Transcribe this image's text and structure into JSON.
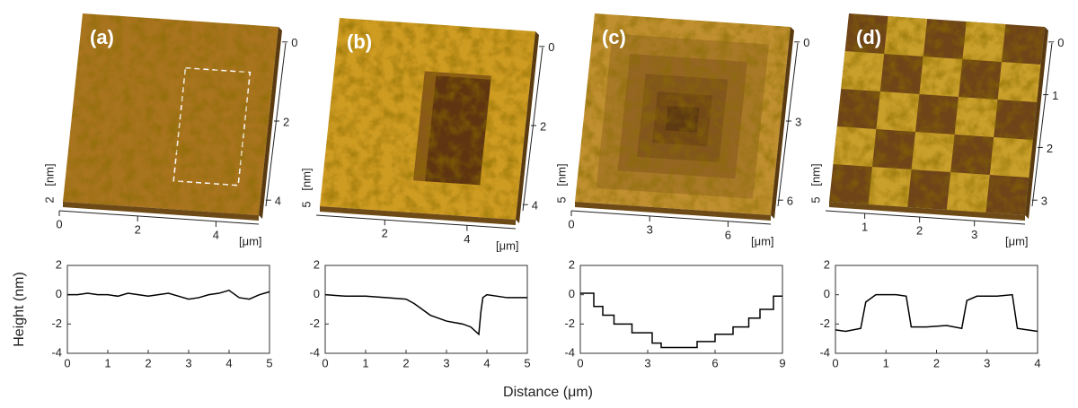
{
  "shared_labels": {
    "y": "Height (nm)",
    "x": "Distance (μm)"
  },
  "afm_images": [
    {
      "label": "(a)",
      "bottom_ticks": [
        "0",
        "2",
        "4"
      ],
      "right_ticks": [
        "0",
        "2",
        "4"
      ],
      "z_tick": "2",
      "z_unit": "[nm]",
      "unit": "[μm]"
    },
    {
      "label": "(b)",
      "bottom_ticks": [
        "2",
        "4"
      ],
      "right_ticks": [
        "0",
        "2",
        "4"
      ],
      "z_tick": "5",
      "z_unit": "[nm]",
      "unit": "[μm]"
    },
    {
      "label": "(c)",
      "bottom_ticks": [
        "0",
        "3",
        "6"
      ],
      "right_ticks": [
        "0",
        "3",
        "6"
      ],
      "z_tick": "5",
      "z_unit": "[nm]",
      "unit": "[μm]"
    },
    {
      "label": "(d)",
      "bottom_ticks": [
        "1",
        "2",
        "3"
      ],
      "right_ticks": [
        "0",
        "1",
        "2",
        "3"
      ],
      "z_tick": "5",
      "z_unit": "[nm]",
      "unit": "[μm]"
    }
  ],
  "chart_data": [
    {
      "type": "line",
      "color": "#000000",
      "x": [
        0,
        0.25,
        0.5,
        0.75,
        1,
        1.25,
        1.5,
        1.75,
        2,
        2.25,
        2.5,
        2.75,
        3,
        3.25,
        3.5,
        3.75,
        4,
        4.25,
        4.5,
        4.75,
        5
      ],
      "values": [
        0,
        0,
        0.1,
        0,
        0,
        -0.1,
        0.1,
        0,
        -0.1,
        0,
        0.1,
        -0.1,
        -0.3,
        -0.2,
        0,
        0.1,
        0.3,
        -0.2,
        -0.3,
        0,
        0.2
      ],
      "xlim": [
        0,
        5
      ],
      "ylim": [
        -4,
        2
      ],
      "xticks": [
        0,
        1,
        2,
        3,
        4,
        5
      ],
      "yticks": [
        -4,
        -2,
        0,
        2
      ]
    },
    {
      "type": "line",
      "color": "#000000",
      "x": [
        0,
        0.5,
        1,
        1.5,
        2,
        2.2,
        2.4,
        2.6,
        2.8,
        3,
        3.2,
        3.4,
        3.6,
        3.8,
        3.85,
        3.9,
        4,
        4.5,
        5
      ],
      "values": [
        0,
        -0.1,
        -0.1,
        -0.2,
        -0.3,
        -0.6,
        -1,
        -1.4,
        -1.6,
        -1.8,
        -1.9,
        -2,
        -2.2,
        -2.7,
        -1.2,
        -0.2,
        0,
        -0.2,
        -0.2
      ],
      "xlim": [
        0,
        5
      ],
      "ylim": [
        -4,
        2
      ],
      "xticks": [
        0,
        1,
        2,
        3,
        4,
        5
      ],
      "yticks": [
        -4,
        -2,
        0,
        2
      ]
    },
    {
      "type": "line",
      "color": "#000000",
      "x": [
        0,
        0.6,
        0.6,
        1,
        1,
        1.5,
        1.5,
        2.3,
        2.3,
        3.2,
        3.2,
        3.6,
        3.6,
        5.2,
        5.2,
        6,
        6,
        6.8,
        6.8,
        7.5,
        7.5,
        8,
        8,
        8.6,
        8.6,
        9
      ],
      "values": [
        0.1,
        0.1,
        -0.8,
        -0.8,
        -1.4,
        -1.4,
        -2,
        -2,
        -2.6,
        -2.6,
        -3.3,
        -3.3,
        -3.6,
        -3.6,
        -3.2,
        -3.2,
        -2.7,
        -2.7,
        -2.2,
        -2.2,
        -1.6,
        -1.6,
        -1,
        -1,
        -0.1,
        -0.1
      ],
      "xlim": [
        0,
        9
      ],
      "ylim": [
        -4,
        2
      ],
      "xticks": [
        0,
        3,
        6,
        9
      ],
      "yticks": [
        -4,
        -2,
        0,
        2
      ]
    },
    {
      "type": "line",
      "color": "#000000",
      "x": [
        0,
        0.2,
        0.5,
        0.6,
        0.8,
        1.2,
        1.4,
        1.5,
        1.8,
        2.2,
        2.5,
        2.6,
        2.8,
        3.2,
        3.5,
        3.6,
        3.8,
        4
      ],
      "values": [
        -2.4,
        -2.5,
        -2.3,
        -0.5,
        0,
        0,
        -0.1,
        -2.2,
        -2.2,
        -2.1,
        -2.3,
        -0.4,
        -0.1,
        -0.1,
        0,
        -2.3,
        -2.4,
        -2.5
      ],
      "xlim": [
        0,
        4
      ],
      "ylim": [
        -4,
        2
      ],
      "xticks": [
        0,
        1,
        2,
        3,
        4
      ],
      "yticks": [
        -4,
        -2,
        0,
        2
      ]
    }
  ]
}
